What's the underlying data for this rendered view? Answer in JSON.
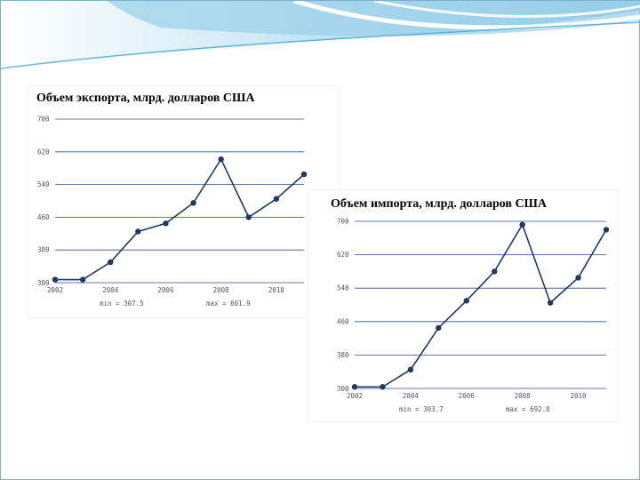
{
  "colors": {
    "series": "#1f3864",
    "grid": "#2f4f8f",
    "banner_light": "#cde8f4",
    "banner_mid": "#8ccbe6",
    "banner_dark": "#3d9fca"
  },
  "chart_data": [
    {
      "type": "line",
      "title": "Объем экспорта, млрд. долларов США",
      "xlabel": "",
      "ylabel": "",
      "x": [
        2002,
        2003,
        2004,
        2005,
        2006,
        2007,
        2008,
        2009,
        2010,
        2011
      ],
      "series": [
        {
          "values": [
            307.5,
            307.5,
            350,
            425,
            445,
            495,
            601.9,
            460,
            505,
            565
          ]
        }
      ],
      "xlim": [
        2002,
        2011
      ],
      "ylim": [
        300,
        700
      ],
      "y_ticks": [
        300,
        380,
        460,
        540,
        620,
        700
      ],
      "x_ticks": [
        2002,
        2004,
        2006,
        2008,
        2010
      ],
      "grid": true,
      "min_label": "min = 307.5",
      "max_label": "max = 601.9"
    },
    {
      "type": "line",
      "title": "Объем импорта, млрд. долларов США",
      "xlabel": "",
      "ylabel": "",
      "x": [
        2002,
        2003,
        2004,
        2005,
        2006,
        2007,
        2008,
        2009,
        2010,
        2011
      ],
      "series": [
        {
          "values": [
            303.7,
            303.7,
            345,
            445,
            510,
            580,
            692,
            505,
            565,
            680
          ]
        }
      ],
      "xlim": [
        2002,
        2011
      ],
      "ylim": [
        300,
        700
      ],
      "y_ticks": [
        300,
        380,
        460,
        540,
        620,
        700
      ],
      "x_ticks": [
        2002,
        2004,
        2006,
        2008,
        2010
      ],
      "grid": true,
      "min_label": "min = 303.7",
      "max_label": "max = 692.0"
    }
  ]
}
